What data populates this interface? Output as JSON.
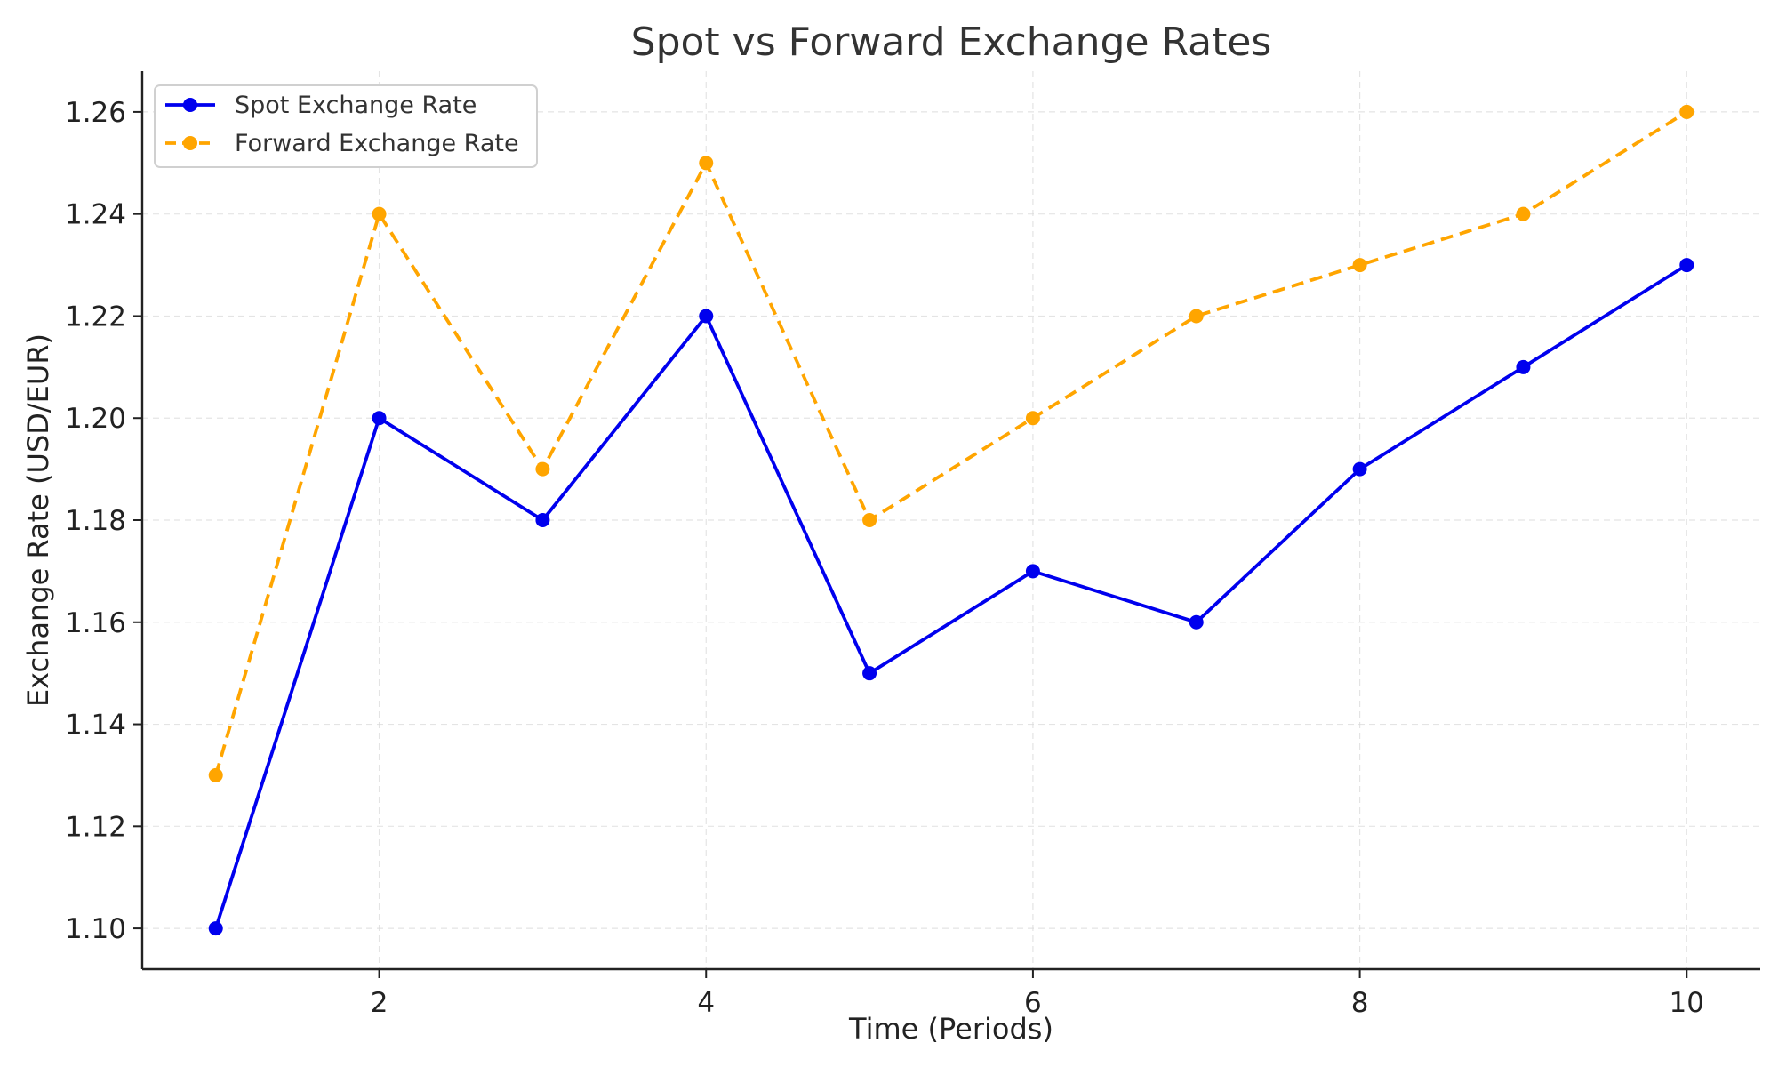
{
  "chart_data": {
    "type": "line",
    "title": "Spot vs Forward Exchange Rates",
    "xlabel": "Time (Periods)",
    "ylabel": "Exchange Rate (USD/EUR)",
    "x": [
      1,
      2,
      3,
      4,
      5,
      6,
      7,
      8,
      9,
      10
    ],
    "xlim": [
      0.55,
      10.45
    ],
    "ylim": [
      1.092,
      1.268
    ],
    "xticks": [
      2,
      4,
      6,
      8,
      10
    ],
    "yticks": [
      1.1,
      1.12,
      1.14,
      1.16,
      1.18,
      1.2,
      1.22,
      1.24,
      1.26
    ],
    "xtick_labels": [
      "2",
      "4",
      "6",
      "8",
      "10"
    ],
    "ytick_labels": [
      "1.10",
      "1.12",
      "1.14",
      "1.16",
      "1.18",
      "1.20",
      "1.22",
      "1.24",
      "1.26"
    ],
    "grid": true,
    "legend_position": "top-left",
    "series": [
      {
        "name": "Spot Exchange Rate",
        "color": "#0000ee",
        "line_style": "solid",
        "marker": "circle",
        "values": [
          1.1,
          1.2,
          1.18,
          1.22,
          1.15,
          1.17,
          1.16,
          1.19,
          1.21,
          1.23
        ]
      },
      {
        "name": "Forward Exchange Rate",
        "color": "#ffa500",
        "line_style": "dashed",
        "marker": "circle",
        "values": [
          1.13,
          1.24,
          1.19,
          1.25,
          1.18,
          1.2,
          1.22,
          1.23,
          1.24,
          1.26
        ]
      }
    ]
  }
}
